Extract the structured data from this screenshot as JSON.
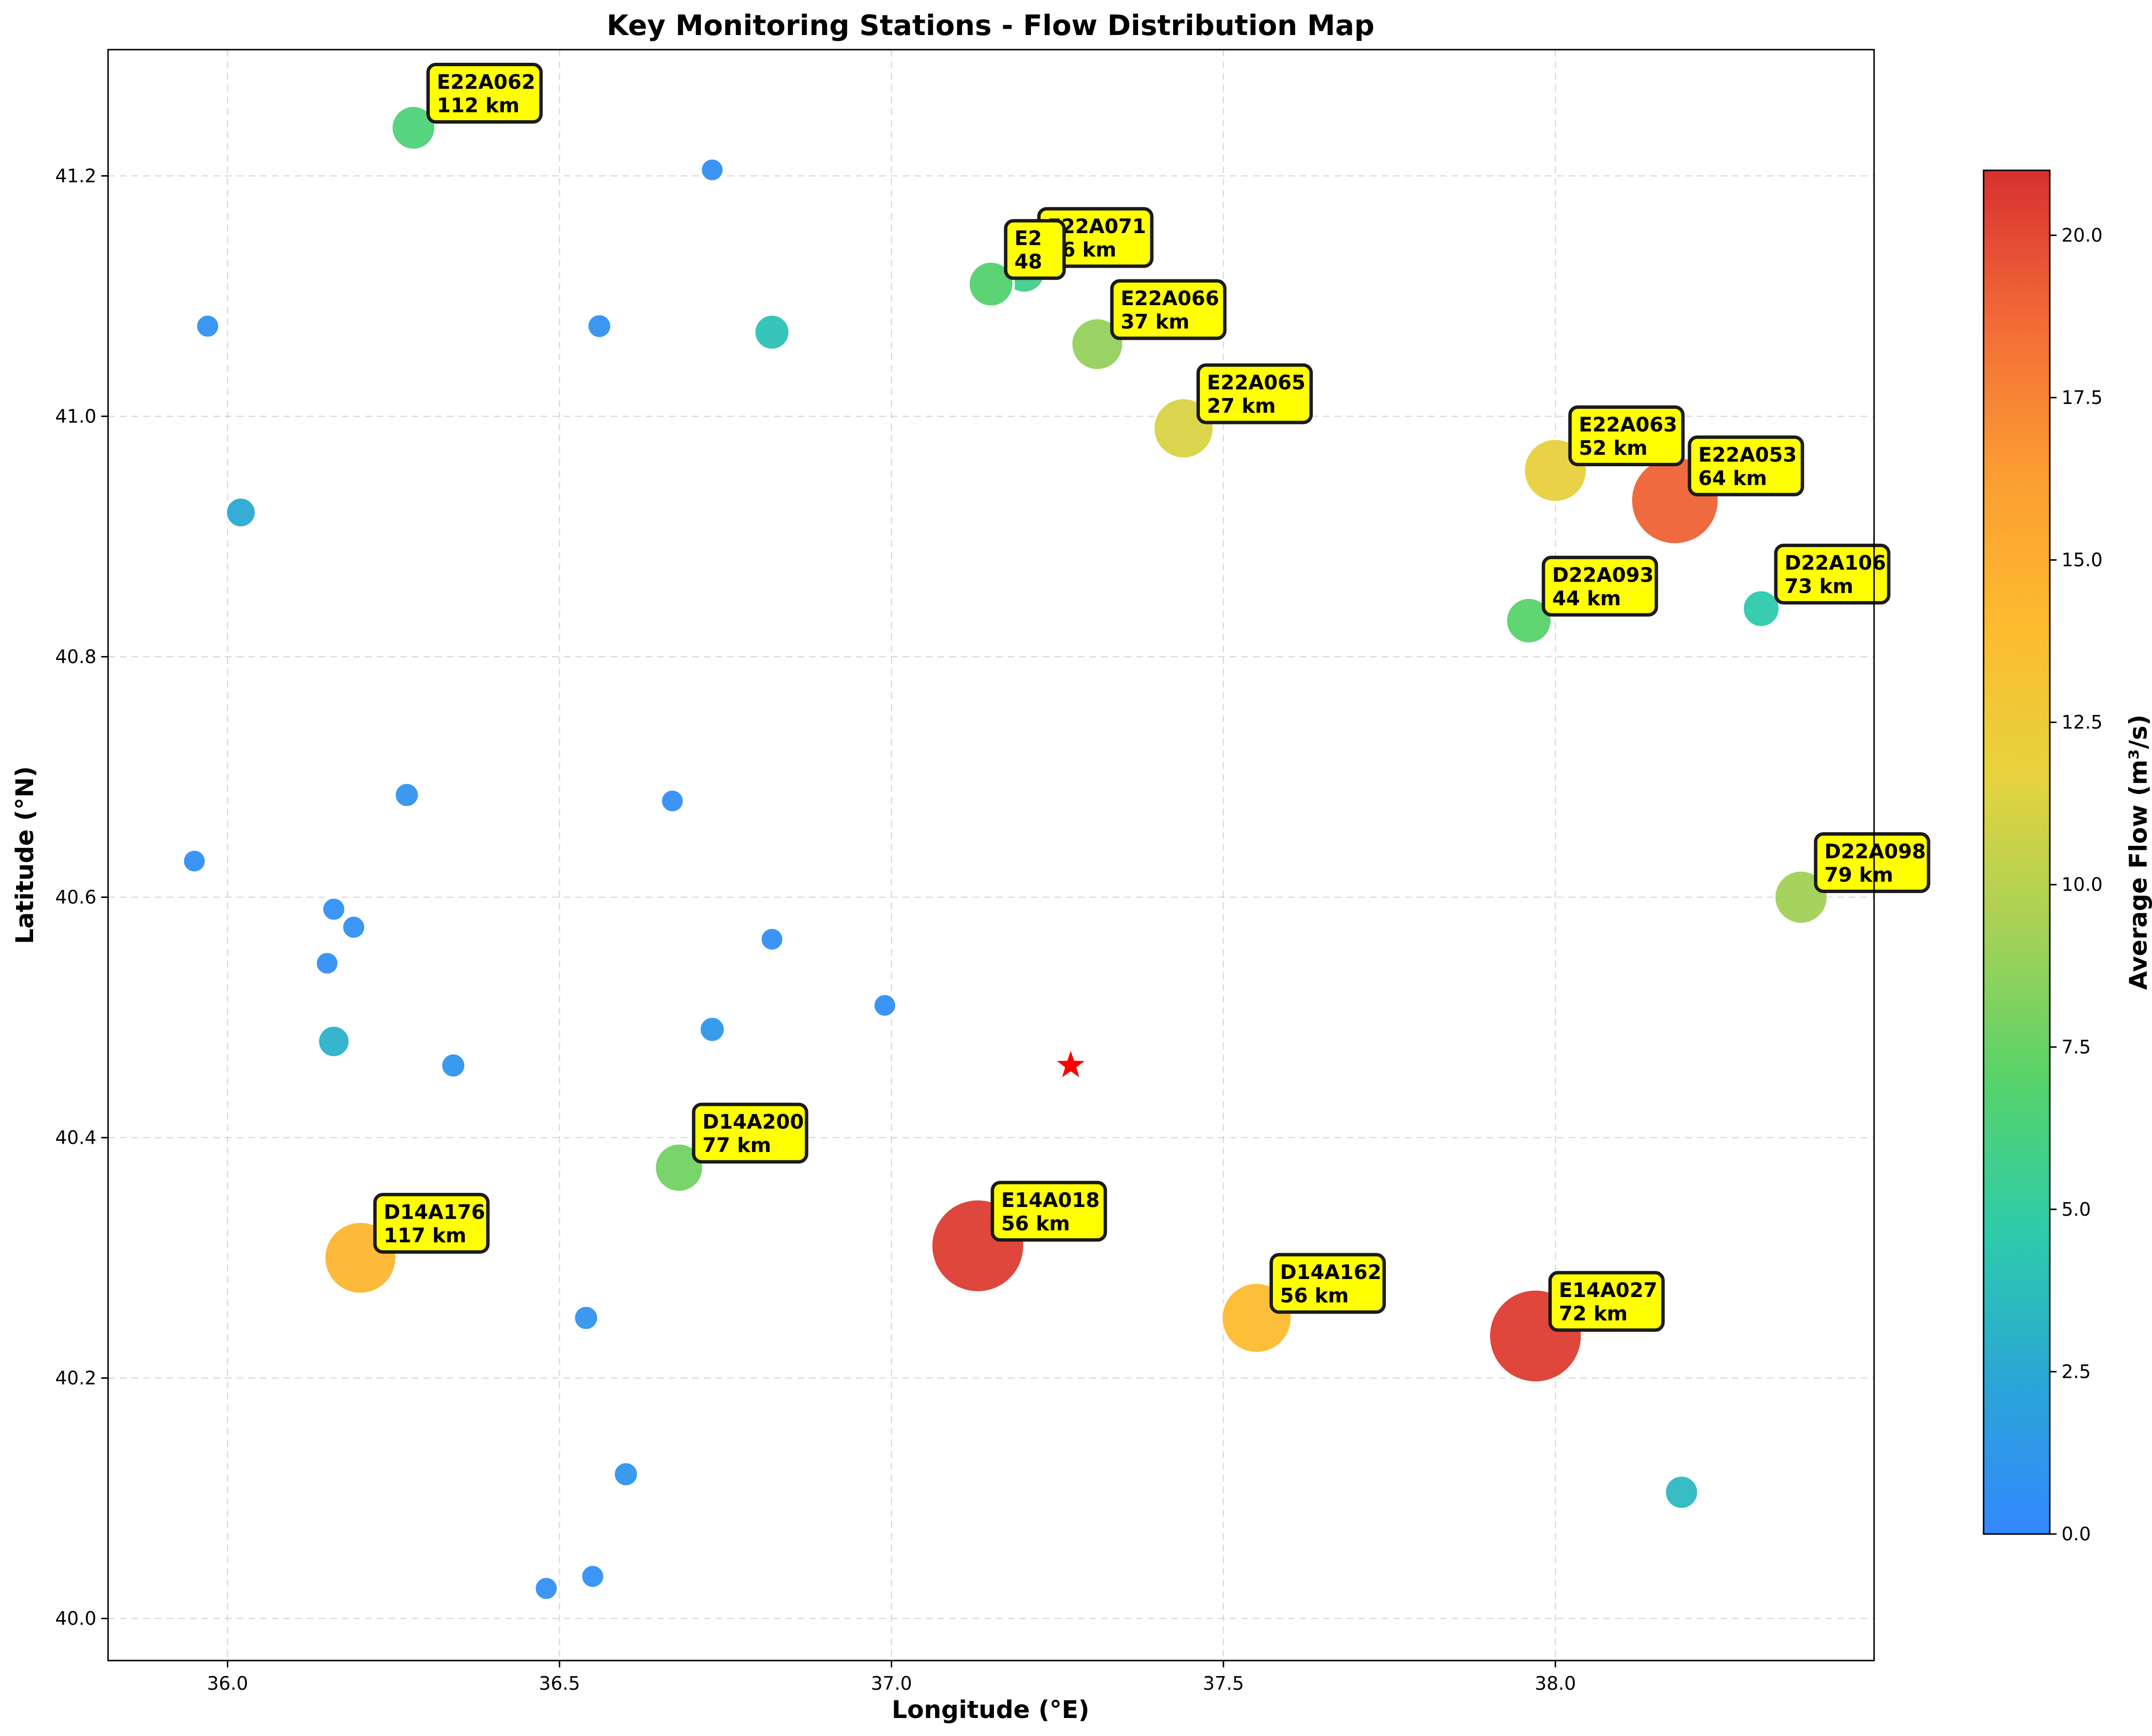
{
  "chart_data": {
    "type": "scatter",
    "title": "Key Monitoring Stations - Flow Distribution Map",
    "xlabel": "Longitude (°E)",
    "ylabel": "Latitude (°N)",
    "colorbar_label": "Average Flow (m³/s)",
    "xlim": [
      35.82,
      38.48
    ],
    "ylim": [
      39.965,
      41.305
    ],
    "xticks": [
      "36.0",
      "36.5",
      "37.0",
      "37.5",
      "38.0"
    ],
    "yticks": [
      "40.0",
      "40.2",
      "40.4",
      "40.6",
      "40.8",
      "41.0",
      "41.2"
    ],
    "colorbar_range": [
      0,
      21
    ],
    "colorbar_ticks": [
      "0.0",
      "2.5",
      "5.0",
      "7.5",
      "10.0",
      "12.5",
      "15.0",
      "17.5",
      "20.0"
    ],
    "colormap": [
      "#3388ff",
      "#2aa6d6",
      "#2dccaa",
      "#57d36a",
      "#a6d156",
      "#e6d33e",
      "#fdbb2e",
      "#fb9d32",
      "#f26b36",
      "#d73030"
    ],
    "grid": true,
    "stations": [
      {
        "label": "E22A062",
        "dist": "112 km",
        "x": 36.28,
        "y": 41.24,
        "flow": 6.5
      },
      {
        "label": "E22A071",
        "dist": "46 km",
        "x": 37.2,
        "y": 41.12,
        "flow": 5.8
      },
      {
        "label": "E2",
        "dist": "48",
        "x": 37.15,
        "y": 41.11,
        "flow": 6.8
      },
      {
        "label": "E22A066",
        "dist": "37 km",
        "x": 37.31,
        "y": 41.06,
        "flow": 8.8
      },
      {
        "label": "E22A065",
        "dist": "27 km",
        "x": 37.44,
        "y": 40.99,
        "flow": 11.2
      },
      {
        "label": "E22A063",
        "dist": "52 km",
        "x": 38.0,
        "y": 40.955,
        "flow": 12.0
      },
      {
        "label": "E22A053",
        "dist": "64 km",
        "x": 38.18,
        "y": 40.93,
        "flow": 19.0
      },
      {
        "label": "D22A093",
        "dist": "44 km",
        "x": 37.96,
        "y": 40.83,
        "flow": 7.0
      },
      {
        "label": "D22A106",
        "dist": "73 km",
        "x": 38.31,
        "y": 40.84,
        "flow": 4.5
      },
      {
        "label": "D22A098",
        "dist": "79 km",
        "x": 38.37,
        "y": 40.6,
        "flow": 9.2
      },
      {
        "label": "D14A200",
        "dist": "77 km",
        "x": 36.68,
        "y": 40.375,
        "flow": 7.8
      },
      {
        "label": "D14A176",
        "dist": "117 km",
        "x": 36.2,
        "y": 40.3,
        "flow": 14.5
      },
      {
        "label": "E14A018",
        "dist": "56 km",
        "x": 37.13,
        "y": 40.31,
        "flow": 20.5
      },
      {
        "label": "D14A162",
        "dist": "56 km",
        "x": 37.55,
        "y": 40.25,
        "flow": 14.0
      },
      {
        "label": "E14A027",
        "dist": "72 km",
        "x": 37.97,
        "y": 40.235,
        "flow": 20.5
      }
    ],
    "other_points": [
      {
        "x": 36.73,
        "y": 41.205,
        "flow": 0.5
      },
      {
        "x": 35.97,
        "y": 41.075,
        "flow": 0.6
      },
      {
        "x": 36.56,
        "y": 41.075,
        "flow": 0.8
      },
      {
        "x": 36.82,
        "y": 41.07,
        "flow": 4.0
      },
      {
        "x": 36.02,
        "y": 40.92,
        "flow": 2.5
      },
      {
        "x": 36.27,
        "y": 40.685,
        "flow": 0.9
      },
      {
        "x": 36.67,
        "y": 40.68,
        "flow": 0.5
      },
      {
        "x": 35.95,
        "y": 40.63,
        "flow": 0.5
      },
      {
        "x": 36.16,
        "y": 40.59,
        "flow": 0.6
      },
      {
        "x": 36.19,
        "y": 40.575,
        "flow": 0.6
      },
      {
        "x": 36.82,
        "y": 40.565,
        "flow": 0.5
      },
      {
        "x": 36.15,
        "y": 40.545,
        "flow": 0.5
      },
      {
        "x": 36.99,
        "y": 40.51,
        "flow": 0.5
      },
      {
        "x": 36.73,
        "y": 40.49,
        "flow": 1.2
      },
      {
        "x": 36.16,
        "y": 40.48,
        "flow": 3.0
      },
      {
        "x": 36.34,
        "y": 40.46,
        "flow": 0.9
      },
      {
        "x": 36.54,
        "y": 40.25,
        "flow": 0.9
      },
      {
        "x": 36.6,
        "y": 40.12,
        "flow": 0.9
      },
      {
        "x": 38.19,
        "y": 40.105,
        "flow": 3.5
      },
      {
        "x": 36.55,
        "y": 40.035,
        "flow": 0.6
      },
      {
        "x": 36.48,
        "y": 40.025,
        "flow": 0.6
      }
    ],
    "marker": {
      "x": 37.27,
      "y": 40.46,
      "color": "#ff0000"
    },
    "annotation_style": {
      "fill": "#ffff00",
      "border": "#1a1a1a"
    }
  }
}
